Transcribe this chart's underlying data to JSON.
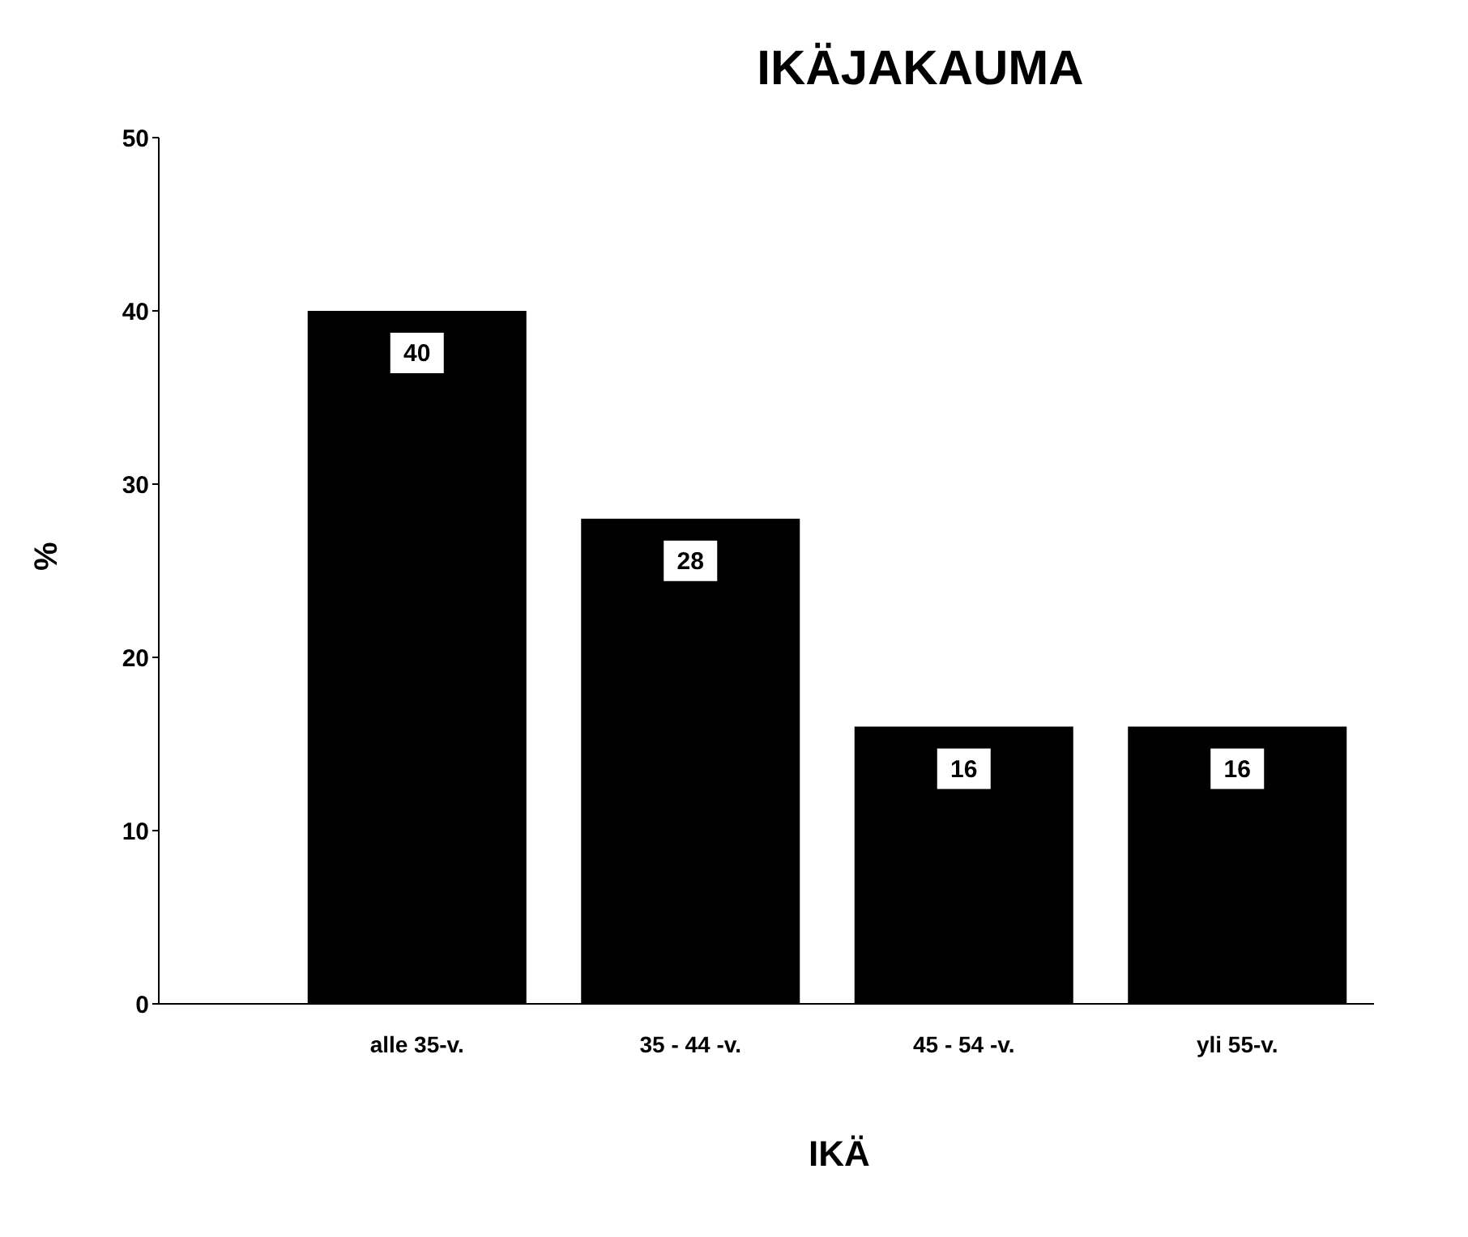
{
  "chart_data": {
    "type": "bar",
    "title": "IKÄJAKAUMA",
    "xlabel": "IKÄ",
    "ylabel": "%",
    "categories": [
      "alle 35-v.",
      "35 - 44 -v.",
      "45 - 54 -v.",
      "yli 55-v."
    ],
    "values": [
      40,
      28,
      16,
      16
    ],
    "color": "#000000",
    "ylim": [
      0,
      50
    ],
    "yticks": [
      0,
      10,
      20,
      30,
      40,
      50
    ],
    "data_labels": true
  }
}
